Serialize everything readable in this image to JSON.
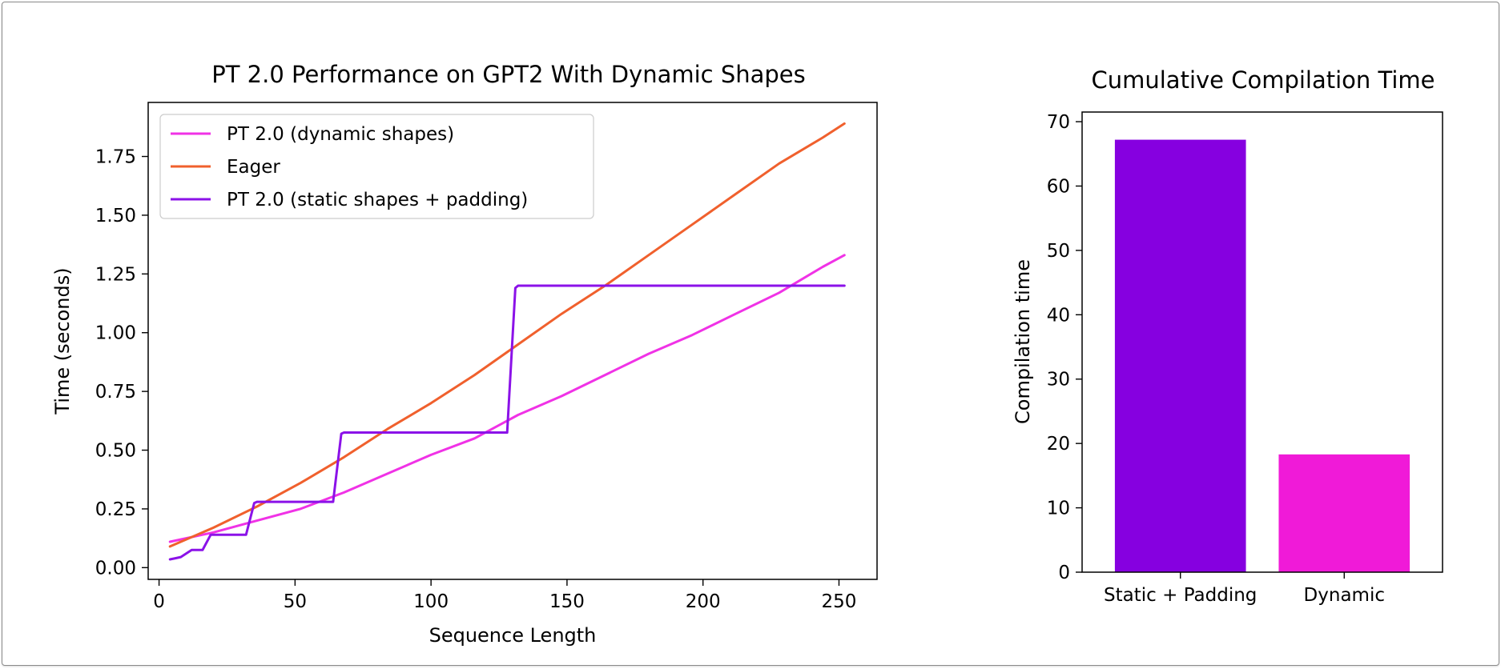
{
  "chart_data": [
    {
      "type": "line",
      "title": "PT 2.0 Performance on GPT2 With Dynamic Shapes",
      "xlabel": "Sequence Length",
      "ylabel": "Time (seconds)",
      "xlim": [
        -4,
        264
      ],
      "ylim": [
        -0.05,
        1.98
      ],
      "xticks": [
        0,
        50,
        100,
        150,
        200,
        250
      ],
      "xtick_labels": [
        "0",
        "50",
        "100",
        "150",
        "200",
        "250"
      ],
      "yticks": [
        0.0,
        0.25,
        0.5,
        0.75,
        1.0,
        1.25,
        1.5,
        1.75
      ],
      "ytick_labels": [
        "0.00",
        "0.25",
        "0.50",
        "0.75",
        "1.00",
        "1.25",
        "1.50",
        "1.75"
      ],
      "grid": false,
      "legend_position": "upper-left",
      "series": [
        {
          "name": "PT 2.0 (dynamic shapes)",
          "color": "#f032e6",
          "x": [
            4,
            20,
            36,
            52,
            68,
            84,
            100,
            116,
            132,
            148,
            164,
            180,
            196,
            212,
            228,
            244,
            252
          ],
          "y": [
            0.11,
            0.15,
            0.2,
            0.25,
            0.32,
            0.4,
            0.48,
            0.55,
            0.65,
            0.73,
            0.82,
            0.91,
            0.99,
            1.08,
            1.17,
            1.28,
            1.33
          ]
        },
        {
          "name": "Eager",
          "color": "#f0602d",
          "x": [
            4,
            20,
            36,
            52,
            68,
            84,
            100,
            116,
            132,
            148,
            164,
            180,
            196,
            212,
            228,
            244,
            252
          ],
          "y": [
            0.09,
            0.17,
            0.26,
            0.36,
            0.47,
            0.59,
            0.7,
            0.82,
            0.95,
            1.08,
            1.2,
            1.33,
            1.46,
            1.59,
            1.72,
            1.83,
            1.89
          ]
        },
        {
          "name": "PT 2.0 (static shapes + padding)",
          "color": "#8b12e8",
          "x": [
            4,
            6,
            8,
            12,
            16,
            19,
            20,
            32,
            35,
            36,
            64,
            67,
            68,
            128,
            131,
            132,
            252
          ],
          "y": [
            0.035,
            0.04,
            0.045,
            0.075,
            0.075,
            0.14,
            0.14,
            0.14,
            0.275,
            0.28,
            0.28,
            0.57,
            0.575,
            0.575,
            1.19,
            1.2,
            1.2
          ]
        }
      ]
    },
    {
      "type": "bar",
      "title": "Cumulative Compilation Time",
      "xlabel": "",
      "ylabel": "Compilation time",
      "ylim": [
        0,
        71.5
      ],
      "yticks": [
        0,
        10,
        20,
        30,
        40,
        50,
        60,
        70
      ],
      "ytick_labels": [
        "0",
        "10",
        "20",
        "30",
        "40",
        "50",
        "60",
        "70"
      ],
      "categories": [
        "Static + Padding",
        "Dynamic"
      ],
      "values": [
        67.2,
        18.3
      ],
      "colors": [
        "#8600e0",
        "#f01ad8"
      ],
      "grid": false
    }
  ]
}
